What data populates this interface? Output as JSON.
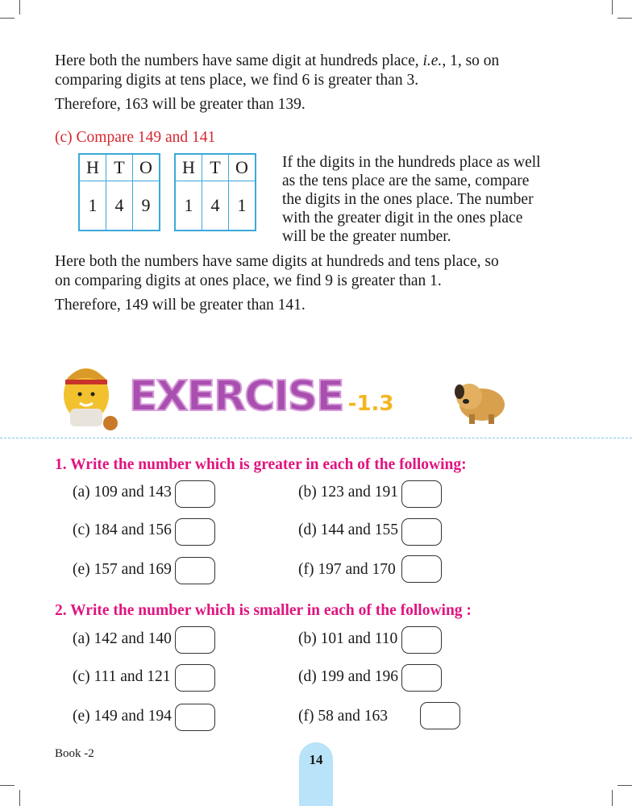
{
  "intro": {
    "line1_pre": "Here both the numbers have same digit at hundreds place, ",
    "line1_ie": "i.e.",
    "line1_post": ", 1, so on",
    "line2": "comparing digits at tens place, we find 6 is greater than 3.",
    "line3": "Therefore, 163 will be greater than 139."
  },
  "section_c": {
    "heading": "(c) Compare 149 and 141",
    "table1": {
      "headers": [
        "H",
        "T",
        "O"
      ],
      "values": [
        "1",
        "4",
        "9"
      ]
    },
    "table2": {
      "headers": [
        "H",
        "T",
        "O"
      ],
      "values": [
        "1",
        "4",
        "1"
      ]
    },
    "side_text": [
      "If the digits in the hundreds place as well",
      "as the tens place are the same, compare",
      "the digits in the ones place. The number",
      "with the greater digit in the ones place",
      "will be the greater number."
    ],
    "conclusion": [
      "Here both the numbers have same digits at hundreds and tens place, so",
      "on comparing digits at ones place, we find 9 is greater than 1.",
      "Therefore, 149 will be greater than 141."
    ]
  },
  "exercise": {
    "title": "EXERCISE",
    "number": "-1.3",
    "q1": {
      "heading": "1. Write the number which is greater in each of the following:",
      "items": [
        "(a) 109 and 143",
        "(b) 123 and 191",
        "(c) 184 and 156",
        "(d) 144 and 155",
        "(e) 157 and 169",
        "(f) 197 and 170"
      ]
    },
    "q2": {
      "heading": "2. Write the number which is smaller in each of the following :",
      "items": [
        "(a) 142 and 140",
        "(b) 101 and 110",
        "(c) 111 and 121",
        "(d) 199 and 196",
        "(e) 149 and 194",
        "(f)  58 and 163"
      ]
    }
  },
  "footer": {
    "book": "Book -2",
    "page": "14"
  },
  "colors": {
    "heading_red": "#d7262f",
    "question_magenta": "#e0147f",
    "table_border": "#3aa9d9",
    "badge": "#b8e3f8"
  }
}
